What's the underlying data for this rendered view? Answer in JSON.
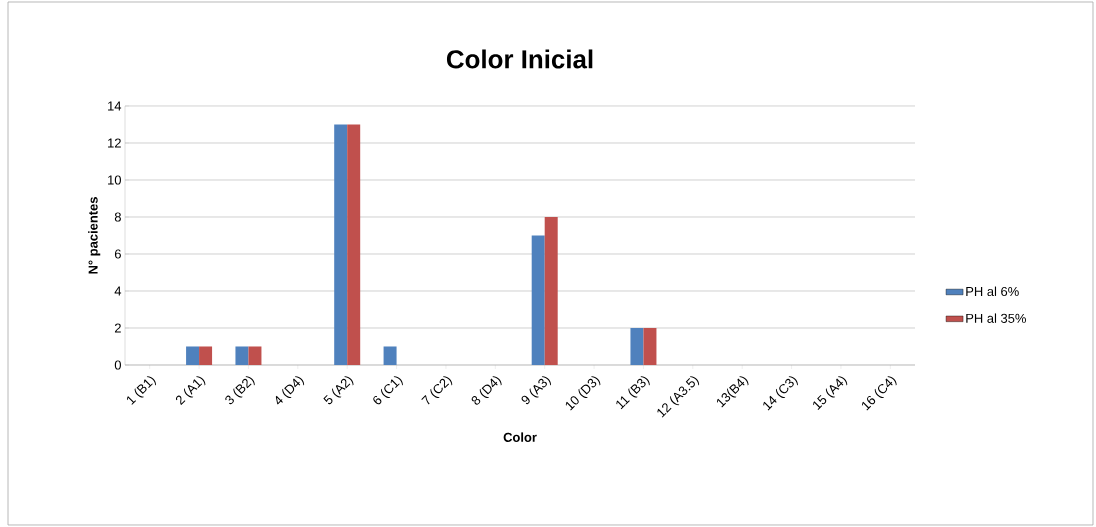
{
  "chart_data": {
    "type": "bar",
    "title": "Color Inicial",
    "xlabel": "Color",
    "ylabel": "N° pacientes",
    "categories": [
      "1 (B1)",
      "2 (A1)",
      "3 (B2)",
      "4 (D4)",
      "5 (A2)",
      "6 (C1)",
      "7 (C2)",
      "8 (D4)",
      "9 (A3)",
      "10 (D3)",
      "11 (B3)",
      "12 (A3.5)",
      "13(B4)",
      "14 (C3)",
      "15 (A4)",
      "16 (C4)"
    ],
    "series": [
      {
        "name": "PH al 6%",
        "color": "#4f81bd",
        "values": [
          0,
          1,
          1,
          0,
          13,
          1,
          0,
          0,
          7,
          0,
          2,
          0,
          0,
          0,
          0,
          0
        ]
      },
      {
        "name": "PH al 35%",
        "color": "#c0504d",
        "values": [
          0,
          1,
          1,
          0,
          13,
          0,
          0,
          0,
          8,
          0,
          2,
          0,
          0,
          0,
          0,
          0
        ]
      }
    ],
    "ylim": [
      0,
      14
    ],
    "yticks": [
      0,
      2,
      4,
      6,
      8,
      10,
      12,
      14
    ],
    "grid": "y",
    "legend": "right"
  }
}
